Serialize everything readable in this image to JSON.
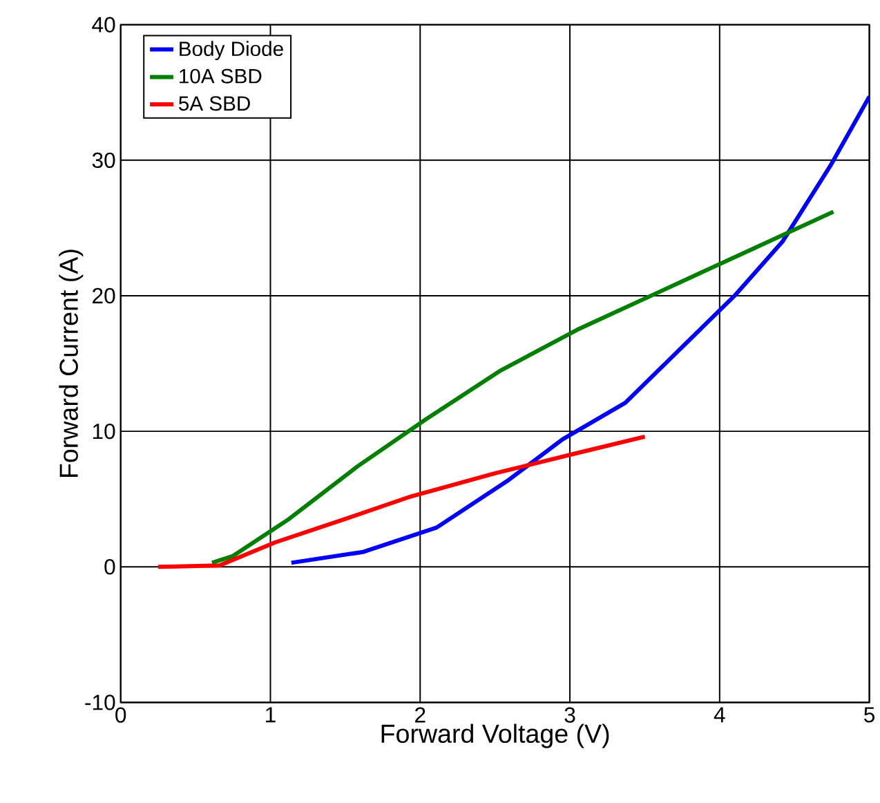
{
  "chart_data": {
    "type": "line",
    "xlabel": "Forward Voltage (V)",
    "ylabel": "Forward Current (A)",
    "xlim": [
      0,
      5
    ],
    "ylim": [
      -10,
      40
    ],
    "xticks": [
      0,
      1,
      2,
      3,
      4,
      5
    ],
    "yticks": [
      -10,
      0,
      10,
      20,
      30,
      40
    ],
    "grid": true,
    "legend": "top left",
    "series": [
      {
        "name": "Body Diode",
        "color": "#0000ff",
        "x": [
          1.14,
          1.62,
          2.11,
          2.59,
          2.95,
          3.37,
          3.73,
          4.1,
          4.42,
          4.74,
          5.0
        ],
        "values": [
          0.3,
          1.1,
          2.9,
          6.4,
          9.4,
          12.1,
          16,
          20,
          24,
          29.6,
          34.7
        ]
      },
      {
        "name": "10A SBD",
        "color": "#008000",
        "x": [
          0.61,
          0.75,
          1.12,
          1.58,
          2.04,
          2.54,
          3.05,
          3.6,
          4.15,
          4.76
        ],
        "values": [
          0.3,
          0.8,
          3.5,
          7.4,
          10.9,
          14.5,
          17.5,
          20.3,
          23.1,
          26.2
        ]
      },
      {
        "name": "5A SBD",
        "color": "#ff0000",
        "x": [
          0.25,
          0.66,
          1.03,
          1.49,
          1.94,
          2.5,
          3.05,
          3.5
        ],
        "values": [
          0,
          0.1,
          1.8,
          3.5,
          5.2,
          6.9,
          8.4,
          9.6
        ]
      }
    ]
  }
}
